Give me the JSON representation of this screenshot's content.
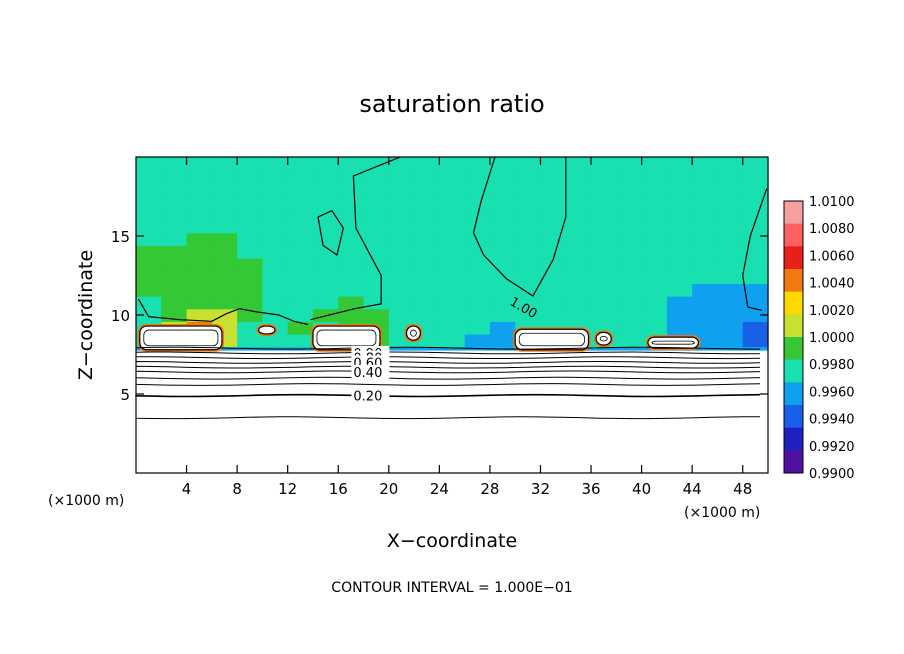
{
  "chart_data": {
    "type": "heatmap",
    "title": "saturation ratio",
    "xlabel": "X−coordinate",
    "ylabel": "Z−coordinate",
    "x_unit": "(×1000 m)",
    "z_unit": "(×1000 m)",
    "xlim": [
      0,
      50
    ],
    "ylim": [
      0,
      20
    ],
    "x_ticks": [
      4,
      8,
      12,
      16,
      20,
      24,
      28,
      32,
      36,
      40,
      44,
      48
    ],
    "y_ticks": [
      5,
      10,
      15
    ],
    "footer": "CONTOUR INTERVAL = 1.000E−01",
    "contour_labels": [
      "1.00",
      "0.90",
      "0.80",
      "0.60",
      "0.40",
      "0.20"
    ],
    "colorbar": {
      "levels": [
        "1.0100",
        "1.0080",
        "1.0060",
        "1.0040",
        "1.0020",
        "1.0000",
        "0.9980",
        "0.9960",
        "0.9940",
        "0.9920",
        "0.9900"
      ],
      "colors": [
        "#f4a0a0",
        "#ff6060",
        "#e8201a",
        "#f07a10",
        "#ffd800",
        "#c8e030",
        "#34c834",
        "#18e0b0",
        "#10a0f0",
        "#1860e8",
        "#2020c0",
        "#5010a0"
      ]
    },
    "field": {
      "background_value": 0.999,
      "grid_x": [
        0,
        2,
        4,
        6,
        8,
        10,
        12,
        14,
        16,
        18,
        20,
        22,
        24,
        26,
        28,
        30,
        32,
        34,
        36,
        38,
        40,
        42,
        44,
        46,
        48,
        50
      ],
      "grid_z": [
        8,
        8.8,
        9.6,
        10.4,
        11.2,
        12,
        12.8,
        13.6,
        14.4,
        15.2,
        16,
        16.8,
        17.6,
        18.4,
        19.2,
        20
      ],
      "values": [
        [
          0.9985,
          1.0008,
          1.0045,
          1.002,
          0.999,
          0.9982,
          0.9988,
          0.999,
          1.003,
          1.001,
          0.999,
          0.9985,
          0.998,
          0.9978,
          0.9975,
          0.9978,
          0.999,
          0.9988,
          0.9992,
          0.9984,
          0.9982,
          0.997,
          0.9965,
          0.996,
          0.9945,
          0.993
        ],
        [
          0.999,
          1.002,
          1.006,
          1.003,
          0.9995,
          0.999,
          1.0002,
          0.9995,
          1.001,
          1.0002,
          0.9995,
          0.999,
          0.9985,
          0.998,
          0.9978,
          0.998,
          0.9985,
          0.9985,
          0.999,
          0.9986,
          0.9982,
          0.9974,
          0.9968,
          0.9962,
          0.9955,
          0.995
        ],
        [
          0.9995,
          1.0015,
          1.0035,
          1.002,
          1.0,
          0.9995,
          0.9995,
          1.0,
          1.0005,
          1.0,
          0.9995,
          0.9992,
          0.9988,
          0.9984,
          0.9982,
          0.9983,
          0.9985,
          0.9986,
          0.9988,
          0.9985,
          0.998,
          0.9975,
          0.997,
          0.9968,
          0.9965,
          0.9968
        ],
        [
          0.9998,
          1.0008,
          1.0015,
          1.001,
          1.0002,
          0.9998,
          0.9995,
          0.9998,
          1.0,
          0.9998,
          0.9996,
          0.9994,
          0.9991,
          0.9988,
          0.9986,
          0.9986,
          0.9987,
          0.9988,
          0.9988,
          0.9986,
          0.9982,
          0.9978,
          0.9974,
          0.9972,
          0.9972,
          0.9975
        ],
        [
          1.0,
          1.0004,
          1.0008,
          1.0006,
          1.0002,
          0.9999,
          0.9996,
          0.9997,
          0.9998,
          0.9997,
          0.9996,
          0.9995,
          0.9993,
          0.9991,
          0.9989,
          0.9989,
          0.9989,
          0.999,
          0.999,
          0.9988,
          0.9985,
          0.9981,
          0.9978,
          0.9978,
          0.9979,
          0.9981
        ],
        [
          1.0,
          1.0002,
          1.0004,
          1.0003,
          1.0001,
          0.9999,
          0.9997,
          0.9996,
          0.9997,
          0.9997,
          0.9997,
          0.9996,
          0.9994,
          0.9992,
          0.9991,
          0.9991,
          0.9991,
          0.9992,
          0.9992,
          0.999,
          0.9987,
          0.9984,
          0.9982,
          0.9983,
          0.9985,
          0.9986
        ],
        [
          1.0,
          1.0001,
          1.0002,
          1.0002,
          1.0,
          0.9998,
          0.9997,
          0.9996,
          0.9996,
          0.9997,
          0.9997,
          0.9996,
          0.9995,
          0.9993,
          0.9992,
          0.9992,
          0.9992,
          0.9993,
          0.9993,
          0.9991,
          0.9988,
          0.9986,
          0.9985,
          0.9986,
          0.9988,
          0.999
        ],
        [
          1.0,
          1.0,
          1.0001,
          1.0001,
          0.9999,
          0.9997,
          0.9996,
          0.9996,
          0.9996,
          0.9997,
          0.9997,
          0.9996,
          0.9995,
          0.9994,
          0.9993,
          0.9993,
          0.9993,
          0.9993,
          0.9993,
          0.9992,
          0.999,
          0.9988,
          0.9987,
          0.9988,
          0.999,
          0.9992
        ],
        [
          0.9999,
          0.9999,
          1.0,
          1.0,
          0.9998,
          0.9997,
          0.9997,
          0.9997,
          0.9997,
          0.9997,
          0.9997,
          0.9996,
          0.9995,
          0.9994,
          0.9994,
          0.9994,
          0.9994,
          0.9994,
          0.9994,
          0.9993,
          0.9991,
          0.9989,
          0.9989,
          0.999,
          0.9992,
          0.9994
        ],
        [
          0.9998,
          0.9998,
          0.9999,
          0.9999,
          0.9998,
          0.9997,
          0.9997,
          0.9997,
          0.9997,
          0.9997,
          0.9997,
          0.9996,
          0.9996,
          0.9995,
          0.9995,
          0.9995,
          0.9995,
          0.9995,
          0.9995,
          0.9994,
          0.9992,
          0.999,
          0.999,
          0.9991,
          0.9993,
          0.9996
        ],
        [
          0.9998,
          0.9998,
          0.9998,
          0.9998,
          0.9998,
          0.9997,
          0.9997,
          0.9998,
          0.9998,
          0.9998,
          0.9997,
          0.9997,
          0.9996,
          0.9996,
          0.9996,
          0.9996,
          0.9996,
          0.9996,
          0.9996,
          0.9995,
          0.9993,
          0.9991,
          0.9991,
          0.9992,
          0.9994,
          0.9997
        ],
        [
          0.9998,
          0.9998,
          0.9998,
          0.9998,
          0.9998,
          0.9998,
          0.9998,
          0.9998,
          0.9998,
          0.9998,
          0.9998,
          0.9997,
          0.9997,
          0.9997,
          0.9997,
          0.9997,
          0.9997,
          0.9997,
          0.9997,
          0.9996,
          0.9994,
          0.9993,
          0.9993,
          0.9993,
          0.9995,
          0.9998
        ],
        [
          0.9998,
          0.9998,
          0.9998,
          0.9998,
          0.9998,
          0.9998,
          0.9998,
          0.9998,
          0.9998,
          0.9998,
          0.9998,
          0.9998,
          0.9998,
          0.9998,
          0.9998,
          0.9998,
          0.9998,
          0.9998,
          0.9998,
          0.9997,
          0.9995,
          0.9994,
          0.9994,
          0.9994,
          0.9996,
          0.9998
        ],
        [
          0.9998,
          0.9998,
          0.9998,
          0.9998,
          0.9998,
          0.9998,
          0.9998,
          0.9998,
          0.9998,
          0.9998,
          0.9998,
          0.9998,
          0.9998,
          0.9998,
          0.9998,
          0.9998,
          0.9998,
          0.9998,
          0.9998,
          0.9997,
          0.9996,
          0.9995,
          0.9995,
          0.9995,
          0.9997,
          0.9998
        ],
        [
          0.9998,
          0.9998,
          0.9998,
          0.9998,
          0.9998,
          0.9998,
          0.9998,
          0.9998,
          0.9998,
          0.9998,
          0.9998,
          0.9998,
          0.9998,
          0.9998,
          0.9998,
          0.9998,
          0.9998,
          0.9998,
          0.9998,
          0.9998,
          0.9997,
          0.9996,
          0.9996,
          0.9996,
          0.9997,
          0.9998
        ],
        [
          0.9998,
          0.9998,
          0.9998,
          0.9998,
          0.9998,
          0.9998,
          0.9998,
          0.9998,
          0.9998,
          0.9998,
          0.9998,
          0.9998,
          0.9998,
          0.9998,
          0.9998,
          0.9998,
          0.9998,
          0.9998,
          0.9998,
          0.9998,
          0.9998,
          0.9997,
          0.9997,
          0.9997,
          0.9998,
          0.9998
        ]
      ]
    },
    "clouds": [
      {
        "x": [
          0.3,
          6.8
        ],
        "z": [
          7.8,
          9.3
        ]
      },
      {
        "x": [
          9.7,
          11.0
        ],
        "z": [
          8.8,
          9.3
        ]
      },
      {
        "x": [
          14.0,
          19.3
        ],
        "z": [
          7.8,
          9.3
        ]
      },
      {
        "x": [
          21.4,
          22.5
        ],
        "z": [
          8.4,
          9.3
        ]
      },
      {
        "x": [
          30.0,
          35.8
        ],
        "z": [
          7.8,
          9.1
        ]
      },
      {
        "x": [
          36.4,
          37.6
        ],
        "z": [
          8.1,
          8.9
        ]
      },
      {
        "x": [
          40.5,
          44.5
        ],
        "z": [
          7.9,
          8.6
        ]
      }
    ],
    "stable_lines_z": [
      7.9,
      7.6,
      7.3,
      7.0,
      6.7,
      6.4,
      6.0,
      5.6,
      4.9,
      3.5
    ]
  }
}
